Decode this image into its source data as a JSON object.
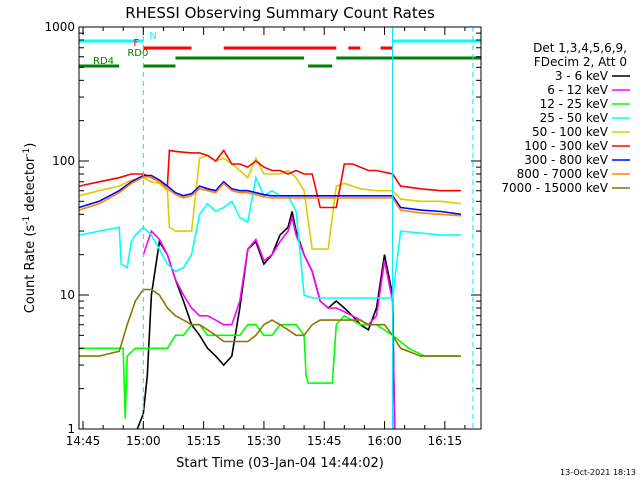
{
  "chart_data": {
    "type": "line",
    "title": "RHESSI Observing Summary Count Rates",
    "xlabel": "Start Time (03-Jan-04 14:44:02)",
    "ylabel_main": "Count Rate (s",
    "ylabel_sup1": "-1",
    "ylabel_mid": " detector",
    "ylabel_sup2": "-1",
    "ylabel_end": ")",
    "x_unit": "minutes after 14:44:02",
    "xlim": [
      0,
      100
    ],
    "ylim": [
      1,
      1000
    ],
    "yscale": "log",
    "x_ticks": [
      {
        "label": "14:45",
        "x": 1.0
      },
      {
        "label": "15:00",
        "x": 16.0
      },
      {
        "label": "15:15",
        "x": 31.0
      },
      {
        "label": "15:30",
        "x": 46.0
      },
      {
        "label": "15:45",
        "x": 61.0
      },
      {
        "label": "16:00",
        "x": 76.0
      },
      {
        "label": "16:15",
        "x": 91.0
      }
    ],
    "y_ticks": [
      {
        "label": "1",
        "y": 1
      },
      {
        "label": "10",
        "y": 10
      },
      {
        "label": "100",
        "y": 100
      },
      {
        "label": "1000",
        "y": 1000
      }
    ],
    "legend_header": [
      "Det 1,3,4,5,6,9,",
      "FDecim 2, Att 0"
    ],
    "legend_placement": "right",
    "timestamp": "13-Oct-2021 18:13",
    "series": [
      {
        "name": "3 - 6 keV",
        "color": "#000000",
        "x": [
          0,
          14,
          14.5,
          16,
          17,
          18,
          20,
          22,
          24,
          26,
          28,
          30,
          32,
          34,
          36,
          38,
          40,
          42,
          44,
          46,
          48,
          50,
          52,
          53,
          54,
          56,
          58,
          60,
          62,
          64,
          66,
          68,
          70,
          72,
          74,
          76,
          78,
          78.5
        ],
        "y": [
          null,
          null,
          1.0,
          1.3,
          2.5,
          10,
          25,
          20,
          13,
          9,
          6,
          5,
          4,
          3.5,
          3,
          3.5,
          8,
          22,
          25,
          17,
          20,
          28,
          32,
          42,
          30,
          20,
          15,
          9,
          8,
          9,
          8,
          7,
          6,
          5.5,
          8,
          20,
          10,
          1.0
        ]
      },
      {
        "name": "6 - 12 keV",
        "color": "#ff00ff",
        "x": [
          14,
          16,
          18,
          20,
          22,
          24,
          26,
          28,
          30,
          32,
          34,
          36,
          38,
          40,
          42,
          44,
          46,
          48,
          50,
          52,
          53,
          54,
          56,
          58,
          60,
          62,
          64,
          66,
          68,
          70,
          72,
          74,
          76,
          78,
          78.5
        ],
        "y": [
          null,
          20,
          30,
          26,
          20,
          13,
          10,
          8,
          7,
          7,
          6.5,
          6,
          6,
          9,
          22,
          26,
          18,
          20,
          25,
          30,
          38,
          28,
          20,
          15,
          9,
          8,
          8,
          7.5,
          7,
          6.5,
          6,
          7,
          18,
          9,
          1.0
        ]
      },
      {
        "name": "12 - 25 keV",
        "color": "#00ff00",
        "x": [
          0,
          2,
          5,
          8,
          10,
          11,
          11.5,
          12,
          14,
          16,
          18,
          20,
          22,
          24,
          26,
          28,
          30,
          32,
          34,
          36,
          38,
          40,
          42,
          44,
          46,
          48,
          50,
          52,
          54,
          56,
          56.5,
          57,
          59,
          61,
          63,
          64,
          66,
          70,
          74,
          78,
          82,
          86,
          90,
          95
        ],
        "y": [
          4,
          4,
          4,
          4,
          4,
          4,
          1.2,
          3.5,
          4,
          4,
          4,
          4,
          4,
          5,
          5,
          6,
          6,
          5,
          5,
          5,
          5,
          5,
          6,
          6,
          5,
          5,
          6,
          6,
          6,
          5,
          2.5,
          2.2,
          2.2,
          2.2,
          2.2,
          6,
          7,
          6,
          6,
          5,
          4,
          3.5,
          3.5,
          3.5
        ]
      },
      {
        "name": "25 - 50 keV",
        "color": "#00ffff",
        "x": [
          0,
          5,
          10,
          10.5,
          12,
          13,
          14,
          16,
          18,
          20,
          22,
          24,
          26,
          28,
          30,
          32,
          34,
          36,
          38,
          40,
          42,
          44,
          46,
          48,
          50,
          52,
          54,
          56,
          58,
          60,
          62,
          64,
          66,
          70,
          74,
          78,
          80,
          85,
          90,
          95
        ],
        "y": [
          28,
          30,
          32,
          17,
          16,
          25,
          28,
          32,
          28,
          22,
          17,
          15,
          16,
          20,
          40,
          48,
          42,
          45,
          50,
          38,
          35,
          75,
          55,
          60,
          55,
          55,
          42,
          10,
          9.5,
          9.5,
          9.5,
          9.5,
          9.5,
          9.5,
          9.5,
          9.5,
          30,
          29,
          28,
          28
        ]
      },
      {
        "name": "50 - 100 keV",
        "color": "#ddcc00",
        "x": [
          0,
          5,
          10,
          13,
          16,
          18,
          20,
          22,
          22.5,
          24,
          28,
          30,
          32,
          34,
          36,
          38,
          40,
          42,
          44,
          46,
          48,
          50,
          52,
          54,
          56,
          58,
          60,
          62,
          64,
          66,
          68,
          70,
          74,
          78,
          80,
          85,
          90,
          95
        ],
        "y": [
          55,
          60,
          65,
          72,
          75,
          70,
          68,
          60,
          32,
          30,
          30,
          105,
          110,
          100,
          105,
          95,
          85,
          75,
          105,
          80,
          80,
          80,
          85,
          75,
          60,
          22,
          22,
          22,
          65,
          68,
          65,
          62,
          60,
          60,
          52,
          50,
          50,
          48
        ]
      },
      {
        "name": "100 - 300 keV",
        "color": "#ff0000",
        "x": [
          0,
          5,
          10,
          13,
          16,
          18,
          20,
          22,
          22.5,
          24,
          28,
          30,
          32,
          34,
          36,
          38,
          40,
          42,
          44,
          46,
          48,
          50,
          52,
          54,
          56,
          58,
          60,
          62,
          64,
          66,
          68,
          70,
          72,
          74,
          78,
          80,
          85,
          90,
          95
        ],
        "y": [
          65,
          70,
          75,
          80,
          80,
          75,
          70,
          65,
          120,
          118,
          115,
          115,
          110,
          100,
          120,
          95,
          95,
          90,
          100,
          90,
          85,
          85,
          80,
          85,
          80,
          80,
          45,
          45,
          45,
          95,
          95,
          90,
          85,
          85,
          80,
          65,
          62,
          60,
          60
        ]
      },
      {
        "name": "300 - 800 keV",
        "color": "#0000ff",
        "x": [
          0,
          5,
          10,
          13,
          16,
          18,
          20,
          22,
          24,
          26,
          28,
          30,
          32,
          34,
          36,
          38,
          40,
          42,
          44,
          46,
          48,
          50,
          52,
          54,
          56,
          58,
          60,
          62,
          64,
          66,
          70,
          74,
          78,
          80,
          85,
          90,
          95
        ],
        "y": [
          45,
          50,
          60,
          70,
          78,
          78,
          72,
          65,
          58,
          55,
          57,
          65,
          62,
          60,
          70,
          62,
          60,
          60,
          58,
          56,
          55,
          55,
          55,
          55,
          55,
          55,
          55,
          55,
          55,
          55,
          55,
          55,
          55,
          45,
          43,
          42,
          40
        ]
      },
      {
        "name": "800 - 7000 keV",
        "color": "#ff8800",
        "x": [
          0,
          5,
          10,
          13,
          16,
          18,
          20,
          22,
          24,
          26,
          28,
          30,
          32,
          34,
          36,
          38,
          40,
          42,
          44,
          46,
          48,
          50,
          52,
          54,
          56,
          58,
          60,
          62,
          64,
          66,
          70,
          74,
          78,
          80,
          85,
          90,
          95
        ],
        "y": [
          43,
          48,
          58,
          68,
          76,
          76,
          70,
          62,
          56,
          53,
          55,
          62,
          60,
          58,
          68,
          60,
          58,
          58,
          56,
          54,
          53,
          53,
          53,
          53,
          53,
          53,
          53,
          53,
          53,
          53,
          53,
          53,
          53,
          43,
          41,
          40,
          39
        ]
      },
      {
        "name": "7000 - 15000 keV",
        "color": "#887700",
        "x": [
          0,
          5,
          10,
          12,
          14,
          16,
          18,
          20,
          22,
          24,
          26,
          28,
          30,
          32,
          34,
          36,
          38,
          40,
          42,
          44,
          46,
          48,
          50,
          52,
          54,
          56,
          58,
          60,
          62,
          64,
          66,
          68,
          70,
          72,
          74,
          76,
          78,
          80,
          85,
          90,
          95
        ],
        "y": [
          3.5,
          3.5,
          3.8,
          6,
          9,
          11,
          11,
          10,
          8,
          7,
          6.5,
          6,
          6,
          5.5,
          5,
          4.5,
          4.5,
          4.5,
          4.5,
          5,
          6,
          6.5,
          6,
          5.5,
          5,
          5,
          6,
          6.5,
          6.5,
          6.5,
          6.5,
          6.5,
          6.5,
          6,
          6,
          6,
          5,
          4,
          3.5,
          3.5,
          3.5
        ]
      }
    ],
    "flag_bars": [
      {
        "label": "N",
        "color": "#00ffff",
        "level": 1,
        "segments": [
          [
            0,
            16
          ],
          [
            78,
            100
          ]
        ]
      },
      {
        "label": "F",
        "color": "#ff0000",
        "level": 2,
        "segments": [
          [
            16,
            28
          ],
          [
            36,
            64
          ],
          [
            67,
            70
          ],
          [
            75,
            78
          ]
        ]
      },
      {
        "label": "RD0",
        "color": "#008000",
        "level": 3,
        "segments": [
          [
            24,
            56
          ],
          [
            64,
            100
          ]
        ]
      },
      {
        "label": "RD4",
        "color": "#008000",
        "level": 4,
        "segments": [
          [
            0,
            10
          ],
          [
            16,
            24
          ],
          [
            57,
            63
          ]
        ]
      }
    ],
    "cyan_lines_solid": [
      0,
      78
    ],
    "cyan_lines_dashed": [
      16,
      98
    ],
    "grid": false
  }
}
